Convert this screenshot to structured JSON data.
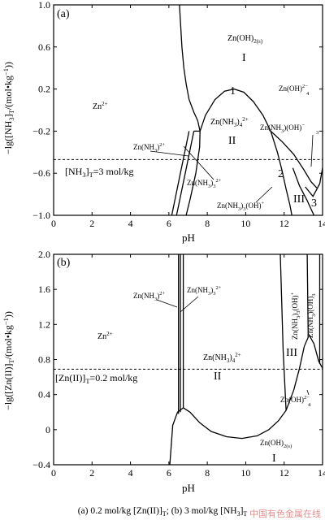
{
  "chart_data": [
    {
      "type": "line",
      "panel_label": "(a)",
      "xlabel": "pH",
      "ylabel": "−lg([NH3]T/(mol•kg−1))",
      "xlim": [
        0,
        14
      ],
      "ylim": [
        -1.0,
        1.0
      ],
      "x_ticks": [
        "0",
        "2",
        "4",
        "6",
        "8",
        "10",
        "12",
        "14"
      ],
      "y_ticks": [
        "1.0",
        "0.6",
        "0.2",
        "−0.2",
        "−0.6",
        "−1.0"
      ],
      "dashed_line": {
        "y": -0.47,
        "label": "[NH3]T=3 mol/kg"
      },
      "region_labels": [
        "Zn2+",
        "Zn(OH)2(s)",
        "I",
        "Zn(NH3)4 2+",
        "II",
        "III",
        "Zn(OH)4 2−",
        "Zn(NH3)2+",
        "Zn(NH3)3 2+",
        "Zn(NH3)(OH)3−",
        "Zn(NH3)3(OH)+"
      ],
      "curve_labels": [
        "1",
        "2",
        "3"
      ],
      "series": [
        {
          "values": [
            [
              6.55,
              1.0
            ],
            [
              6.6,
              0.85
            ],
            [
              6.68,
              0.6
            ],
            [
              6.78,
              0.4
            ],
            [
              6.9,
              0.25
            ],
            [
              7.05,
              0.1
            ],
            [
              7.3,
              -0.02
            ],
            [
              7.5,
              -0.1
            ],
            [
              7.62,
              -0.2
            ],
            [
              7.6,
              -0.35
            ],
            [
              7.4,
              -0.6
            ],
            [
              7.1,
              -0.85
            ],
            [
              6.9,
              -1.0
            ]
          ]
        },
        {
          "values": [
            [
              7.62,
              -0.2
            ],
            [
              7.9,
              -0.05
            ],
            [
              8.4,
              0.1
            ],
            [
              8.9,
              0.18
            ],
            [
              9.4,
              0.2
            ],
            [
              9.9,
              0.17
            ],
            [
              10.4,
              0.08
            ],
            [
              10.9,
              -0.05
            ],
            [
              11.3,
              -0.2
            ],
            [
              11.65,
              -0.4
            ],
            [
              11.9,
              -0.58
            ],
            [
              12.1,
              -0.75
            ],
            [
              12.3,
              -0.9
            ],
            [
              12.4,
              -1.0
            ]
          ]
        },
        {
          "values": [
            [
              7.3,
              -0.2
            ],
            [
              7.62,
              -0.2
            ]
          ]
        },
        {
          "values": [
            [
              7.05,
              -0.2
            ],
            [
              6.6,
              -0.6
            ],
            [
              6.15,
              -1.0
            ]
          ]
        },
        {
          "values": [
            [
              7.3,
              -0.2
            ],
            [
              6.85,
              -0.6
            ],
            [
              6.4,
              -1.0
            ]
          ]
        },
        {
          "values": [
            [
              11.3,
              -0.2
            ],
            [
              11.9,
              -0.3
            ],
            [
              12.5,
              -0.42
            ],
            [
              13.0,
              -0.56
            ],
            [
              13.4,
              -0.68
            ],
            [
              13.7,
              -0.74
            ]
          ]
        },
        {
          "values": [
            [
              12.45,
              -0.55
            ],
            [
              12.8,
              -0.72
            ],
            [
              13.2,
              -0.86
            ],
            [
              13.45,
              -0.96
            ],
            [
              13.55,
              -1.0
            ]
          ]
        },
        {
          "values": [
            [
              13.1,
              -0.73
            ],
            [
              13.5,
              -0.82
            ],
            [
              13.85,
              -0.7
            ],
            [
              13.95,
              -0.6
            ],
            [
              14.0,
              -0.55
            ]
          ]
        }
      ]
    },
    {
      "type": "line",
      "panel_label": "(b)",
      "xlabel": "pH",
      "ylabel": "−lg([Zn(II)]T/(mol•kg−1))",
      "xlim": [
        0,
        14
      ],
      "ylim": [
        -0.4,
        2.0
      ],
      "x_ticks": [
        "0",
        "2",
        "4",
        "6",
        "8",
        "10",
        "12",
        "14"
      ],
      "y_ticks": [
        "2.0",
        "1.6",
        "1.2",
        "0.8",
        "0.4",
        "0",
        "−0.4"
      ],
      "dashed_line": {
        "y": 0.69,
        "label": "[Zn(II)]T=0.2 mol/kg"
      },
      "region_labels": [
        "Zn2+",
        "Zn(NH3)2+",
        "Zn(NH3)3 2+",
        "Zn(NH3)4 2+",
        "II",
        "III",
        "Zn(NH3)3(OH)+",
        "Zn(NH3)(OH)3−",
        "Zn(OH)4 2−",
        "Zn(OH)2(s)",
        "I"
      ],
      "series": [
        {
          "values": [
            [
              6.5,
              2.0
            ],
            [
              6.5,
              0.18
            ]
          ]
        },
        {
          "values": [
            [
              6.75,
              2.0
            ],
            [
              6.75,
              0.25
            ]
          ]
        },
        {
          "values": [
            [
              6.6,
              2.0
            ],
            [
              6.6,
              0.2
            ]
          ]
        },
        {
          "values": [
            [
              6.05,
              -0.4
            ],
            [
              6.2,
              0.05
            ],
            [
              6.45,
              0.2
            ],
            [
              6.75,
              0.25
            ],
            [
              7.1,
              0.2
            ],
            [
              7.6,
              0.08
            ],
            [
              8.2,
              -0.02
            ],
            [
              9.0,
              -0.08
            ],
            [
              9.8,
              -0.1
            ],
            [
              10.6,
              -0.07
            ],
            [
              11.2,
              0.0
            ],
            [
              11.7,
              0.1
            ],
            [
              12.1,
              0.22
            ],
            [
              12.5,
              0.45
            ],
            [
              12.8,
              0.7
            ],
            [
              13.05,
              0.95
            ],
            [
              13.3,
              1.08
            ],
            [
              13.55,
              0.98
            ],
            [
              13.8,
              0.78
            ],
            [
              14.0,
              0.7
            ]
          ]
        },
        {
          "values": [
            [
              11.8,
              2.0
            ],
            [
              11.95,
              0.9
            ],
            [
              12.1,
              0.22
            ]
          ]
        },
        {
          "values": [
            [
              13.2,
              2.0
            ],
            [
              13.25,
              1.08
            ]
          ]
        },
        {
          "values": [
            [
              13.85,
              2.0
            ],
            [
              13.85,
              0.75
            ]
          ]
        }
      ]
    }
  ],
  "watermark": "中国有色金属在线",
  "caption": "(a) 0.2 mol/kg [Zn(II)]T; (b) 3 mol/kg [NH3]T"
}
